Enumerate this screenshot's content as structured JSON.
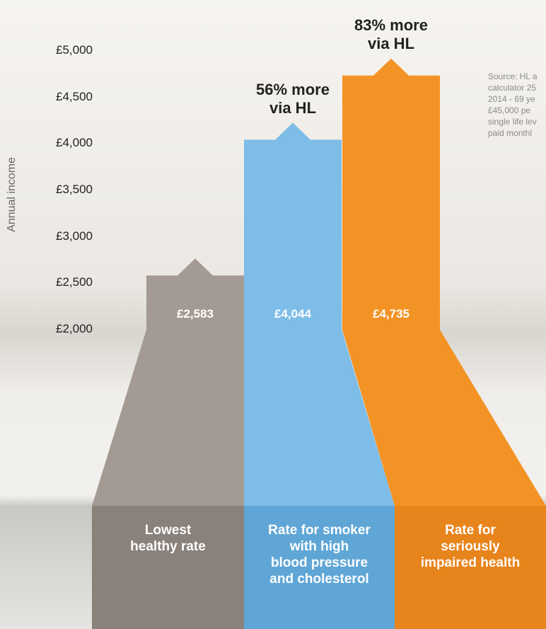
{
  "chart_data": {
    "type": "bar",
    "y_label": "Annual income",
    "categories": [
      "Lowest\nhealthy rate",
      "Rate for smoker\nwith high\nblood pressure\nand cholesterol",
      "Rate for\nseriously\nimpaired health"
    ],
    "values": [
      2583,
      4044,
      4735
    ],
    "value_labels": [
      "£2,583",
      "£4,044",
      "£4,735"
    ],
    "annotations": [
      null,
      "56% more\nvia HL",
      "83% more\nvia HL"
    ],
    "colors": [
      "#a39a93",
      "#7dbde8",
      "#f39325"
    ],
    "ylim": [
      2000,
      5000
    ],
    "yticks": [
      {
        "value": 2000,
        "label": "£2,000"
      },
      {
        "value": 2500,
        "label": "£2,500"
      },
      {
        "value": 3000,
        "label": "£3,000"
      },
      {
        "value": 3500,
        "label": "£3,500"
      },
      {
        "value": 4000,
        "label": "£4,000"
      },
      {
        "value": 4500,
        "label": "£4,500"
      },
      {
        "value": 5000,
        "label": "£5,000"
      }
    ],
    "grid": false,
    "source": [
      "Source: HL a",
      "calculator 25",
      "2014 - 69 ye",
      "£45,000 pe",
      "single life lev",
      "paid monthl"
    ]
  }
}
